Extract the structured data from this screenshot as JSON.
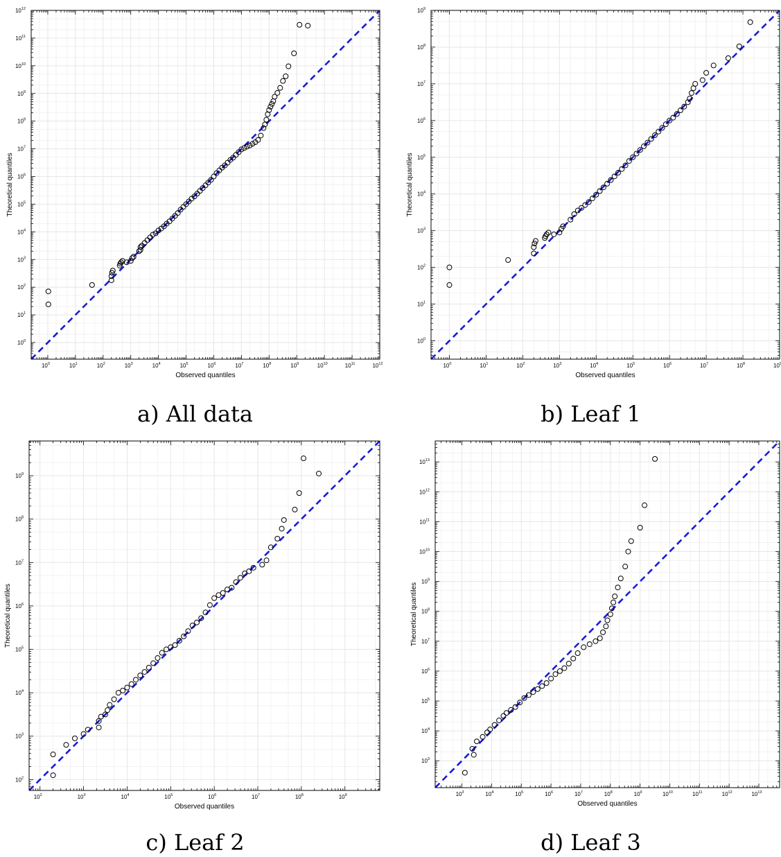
{
  "colors": {
    "reference_line": "#1a1ad6",
    "points": "#000000",
    "grid": "#e6e6e6",
    "background": "#ffffff"
  },
  "chart_data": [
    {
      "type": "scatter",
      "caption": "a) All data",
      "xlabel": "Observed quantiles",
      "ylabel": "Theoretical quantiles",
      "log_scale": true,
      "xlim_exp": [
        -0.6,
        12
      ],
      "ylim_exp": [
        -0.6,
        12
      ],
      "x_tick_exponents": [
        0,
        1,
        2,
        3,
        4,
        5,
        6,
        7,
        8,
        9,
        10,
        11,
        12
      ],
      "y_tick_exponents": [
        0,
        1,
        2,
        3,
        4,
        5,
        6,
        7,
        8,
        9,
        10,
        11,
        12
      ],
      "tick_base": "10",
      "grid": true,
      "reference_line": "y = x",
      "points_log10": {
        "x": [
          0.02,
          0.02,
          1.6,
          2.3,
          2.3,
          2.32,
          2.35,
          2.6,
          2.62,
          2.65,
          2.7,
          2.85,
          3.0,
          3.05,
          3.1,
          3.3,
          3.35,
          3.35,
          3.4,
          3.5,
          3.6,
          3.7,
          3.8,
          3.9,
          4.0,
          4.1,
          4.2,
          4.3,
          4.4,
          4.5,
          4.6,
          4.7,
          4.8,
          4.9,
          5.0,
          5.1,
          5.2,
          5.3,
          5.4,
          5.5,
          5.6,
          5.7,
          5.8,
          5.9,
          6.0,
          6.1,
          6.2,
          6.3,
          6.4,
          6.5,
          6.6,
          6.7,
          6.8,
          6.9,
          7.0,
          7.1,
          7.2,
          7.3,
          7.4,
          7.5,
          7.6,
          7.7,
          7.8,
          7.85,
          7.9,
          7.95,
          8.0,
          8.05,
          8.1,
          8.15,
          8.2,
          8.3,
          8.4,
          8.5,
          8.6,
          8.7,
          8.9,
          9.1,
          9.4
        ],
        "y": [
          1.85,
          1.38,
          2.08,
          2.25,
          2.4,
          2.52,
          2.6,
          2.78,
          2.85,
          2.9,
          2.95,
          2.9,
          2.95,
          3.05,
          3.1,
          3.3,
          3.35,
          3.45,
          3.5,
          3.6,
          3.7,
          3.8,
          3.9,
          3.95,
          4.05,
          4.12,
          4.2,
          4.3,
          4.38,
          4.48,
          4.58,
          4.68,
          4.8,
          4.9,
          5.0,
          5.1,
          5.2,
          5.28,
          5.38,
          5.48,
          5.58,
          5.68,
          5.78,
          5.88,
          6.0,
          6.12,
          6.22,
          6.32,
          6.4,
          6.5,
          6.6,
          6.68,
          6.78,
          6.88,
          6.98,
          7.03,
          7.08,
          7.12,
          7.18,
          7.24,
          7.32,
          7.48,
          7.75,
          7.88,
          8.05,
          8.25,
          8.4,
          8.52,
          8.62,
          8.72,
          8.88,
          9.02,
          9.2,
          9.45,
          9.62,
          9.98,
          10.45,
          11.48,
          11.45
        ]
      }
    },
    {
      "type": "scatter",
      "caption": "b) Leaf 1",
      "xlabel": "Observed quantiles",
      "ylabel": "Theoretical quantiles",
      "log_scale": true,
      "xlim_exp": [
        -0.5,
        9
      ],
      "ylim_exp": [
        -0.5,
        9
      ],
      "x_tick_exponents": [
        0,
        1,
        2,
        3,
        4,
        5,
        6,
        7,
        8,
        9
      ],
      "y_tick_exponents": [
        0,
        1,
        2,
        3,
        4,
        5,
        6,
        7,
        8,
        9
      ],
      "tick_base": "10",
      "grid": true,
      "reference_line": "y = x",
      "points_log10": {
        "x": [
          0.0,
          0.0,
          1.6,
          2.3,
          2.3,
          2.32,
          2.35,
          2.6,
          2.62,
          2.65,
          2.7,
          2.85,
          3.0,
          3.05,
          3.1,
          3.3,
          3.4,
          3.5,
          3.6,
          3.7,
          3.8,
          3.9,
          4.0,
          4.1,
          4.2,
          4.3,
          4.4,
          4.5,
          4.6,
          4.7,
          4.8,
          4.9,
          5.0,
          5.1,
          5.2,
          5.3,
          5.4,
          5.5,
          5.6,
          5.7,
          5.8,
          5.9,
          6.0,
          6.1,
          6.2,
          6.3,
          6.4,
          6.5,
          6.55,
          6.6,
          6.65,
          6.7,
          6.9,
          7.0,
          7.2,
          7.6,
          7.9,
          8.2
        ],
        "y": [
          2.0,
          1.52,
          2.2,
          2.38,
          2.55,
          2.65,
          2.72,
          2.8,
          2.85,
          2.9,
          2.95,
          2.9,
          2.95,
          3.05,
          3.12,
          3.3,
          3.45,
          3.55,
          3.62,
          3.7,
          3.78,
          3.88,
          3.98,
          4.08,
          4.18,
          4.28,
          4.38,
          4.48,
          4.58,
          4.68,
          4.78,
          4.9,
          5.0,
          5.1,
          5.2,
          5.3,
          5.4,
          5.5,
          5.6,
          5.7,
          5.8,
          5.9,
          6.0,
          6.08,
          6.18,
          6.28,
          6.38,
          6.5,
          6.6,
          6.75,
          6.88,
          7.0,
          7.1,
          7.3,
          7.5,
          7.7,
          8.02,
          8.68
        ]
      }
    },
    {
      "type": "scatter",
      "caption": "c) Leaf 2",
      "xlabel": "Observed quantiles",
      "ylabel": "Theoretical quantiles",
      "log_scale": true,
      "xlim_exp": [
        1.75,
        9.8
      ],
      "ylim_exp": [
        1.75,
        9.8
      ],
      "x_tick_exponents": [
        2,
        3,
        4,
        5,
        6,
        7,
        8,
        9
      ],
      "y_tick_exponents": [
        2,
        3,
        4,
        5,
        6,
        7,
        8,
        9
      ],
      "tick_base": "10",
      "grid": true,
      "reference_line": "y = x",
      "points_log10": {
        "x": [
          2.3,
          2.3,
          2.6,
          2.8,
          3.0,
          3.1,
          3.35,
          3.35,
          3.4,
          3.5,
          3.55,
          3.6,
          3.7,
          3.8,
          3.9,
          4.0,
          4.1,
          4.2,
          4.3,
          4.4,
          4.5,
          4.6,
          4.7,
          4.8,
          4.9,
          5.0,
          5.1,
          5.2,
          5.3,
          5.4,
          5.5,
          5.6,
          5.7,
          5.8,
          5.9,
          6.0,
          6.1,
          6.2,
          6.3,
          6.4,
          6.5,
          6.6,
          6.7,
          6.8,
          6.9,
          7.1,
          7.2,
          7.3,
          7.45,
          7.55,
          7.6,
          7.85,
          7.95,
          8.05,
          8.4
        ],
        "y": [
          2.1,
          2.58,
          2.8,
          2.95,
          3.05,
          3.15,
          3.2,
          3.35,
          3.45,
          3.5,
          3.6,
          3.72,
          3.85,
          4.0,
          4.05,
          4.12,
          4.2,
          4.3,
          4.4,
          4.48,
          4.58,
          4.68,
          4.8,
          4.92,
          5.0,
          5.05,
          5.1,
          5.2,
          5.3,
          5.42,
          5.55,
          5.62,
          5.72,
          5.85,
          6.02,
          6.18,
          6.25,
          6.3,
          6.38,
          6.42,
          6.55,
          6.65,
          6.75,
          6.8,
          6.88,
          6.95,
          7.05,
          7.35,
          7.55,
          7.78,
          7.98,
          8.22,
          8.6,
          9.4,
          9.05
        ]
      }
    },
    {
      "type": "scatter",
      "caption": "d) Leaf 3",
      "xlabel": "Observed quantiles",
      "ylabel": "Theoretical quantiles",
      "log_scale": true,
      "xlim_exp": [
        2.1,
        13.7
      ],
      "ylim_exp": [
        2.1,
        13.7
      ],
      "x_tick_exponents": [
        3,
        4,
        5,
        6,
        7,
        8,
        9,
        10,
        11,
        12,
        13
      ],
      "y_tick_exponents": [
        3,
        4,
        5,
        6,
        7,
        8,
        9,
        10,
        11,
        12,
        13
      ],
      "tick_base": "10",
      "grid": true,
      "reference_line": "y = x",
      "points_log10": {
        "x": [
          3.1,
          3.35,
          3.4,
          3.5,
          3.7,
          3.85,
          3.95,
          4.1,
          4.25,
          4.4,
          4.5,
          4.65,
          4.8,
          4.95,
          5.1,
          5.25,
          5.4,
          5.55,
          5.7,
          5.85,
          6.0,
          6.15,
          6.3,
          6.45,
          6.6,
          6.75,
          6.9,
          7.1,
          7.3,
          7.5,
          7.65,
          7.75,
          7.85,
          7.9,
          8.0,
          8.05,
          8.1,
          8.15,
          8.25,
          8.35,
          8.5,
          8.6,
          8.7,
          9.0,
          9.15,
          9.5
        ],
        "y": [
          2.6,
          3.4,
          3.2,
          3.65,
          3.8,
          3.95,
          4.05,
          4.2,
          4.35,
          4.5,
          4.6,
          4.7,
          4.8,
          4.95,
          5.1,
          5.2,
          5.3,
          5.4,
          5.5,
          5.6,
          5.75,
          5.9,
          6.0,
          6.1,
          6.25,
          6.42,
          6.6,
          6.8,
          6.9,
          7.0,
          7.1,
          7.3,
          7.5,
          7.7,
          7.9,
          8.1,
          8.3,
          8.5,
          8.8,
          9.1,
          9.5,
          10.0,
          10.35,
          10.8,
          11.55,
          13.1
        ]
      }
    }
  ]
}
